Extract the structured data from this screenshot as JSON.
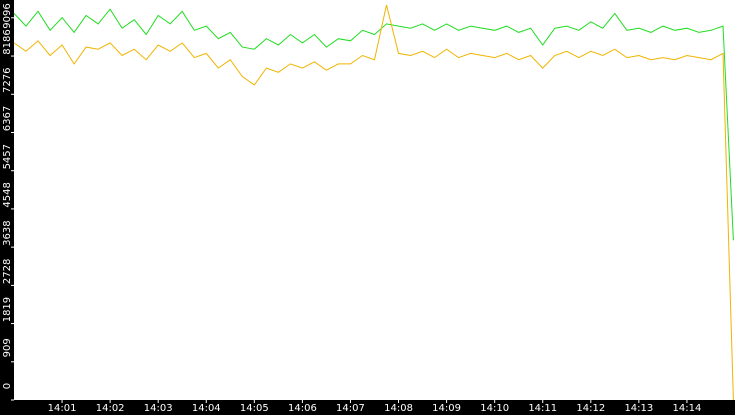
{
  "chart_data": {
    "type": "line",
    "x": [
      "14:00:00",
      "14:00:15",
      "14:00:30",
      "14:00:45",
      "14:01:00",
      "14:01:15",
      "14:01:30",
      "14:01:45",
      "14:02:00",
      "14:02:15",
      "14:02:30",
      "14:02:45",
      "14:03:00",
      "14:03:15",
      "14:03:30",
      "14:03:45",
      "14:04:00",
      "14:04:15",
      "14:04:30",
      "14:04:45",
      "14:05:00",
      "14:05:15",
      "14:05:30",
      "14:05:45",
      "14:06:00",
      "14:06:15",
      "14:06:30",
      "14:06:45",
      "14:07:00",
      "14:07:15",
      "14:07:30",
      "14:07:45",
      "14:08:00",
      "14:08:15",
      "14:08:30",
      "14:08:45",
      "14:09:00",
      "14:09:15",
      "14:09:30",
      "14:09:45",
      "14:10:00",
      "14:10:15",
      "14:10:30",
      "14:10:45",
      "14:11:00",
      "14:11:15",
      "14:11:30",
      "14:11:45",
      "14:12:00",
      "14:12:15",
      "14:12:30",
      "14:12:45",
      "14:13:00",
      "14:13:15",
      "14:13:30",
      "14:13:45",
      "14:14:00",
      "14:14:15",
      "14:14:30",
      "14:14:45",
      "14:14:58"
    ],
    "series": [
      {
        "color": "#22dd22",
        "values": [
          9200,
          8900,
          9250,
          8800,
          9100,
          8750,
          9150,
          8950,
          9300,
          8850,
          9050,
          8700,
          9150,
          8950,
          9250,
          8800,
          8900,
          8600,
          8750,
          8400,
          8350,
          8600,
          8450,
          8700,
          8500,
          8700,
          8400,
          8600,
          8550,
          8800,
          8700,
          8950,
          8900,
          8850,
          8950,
          8800,
          8950,
          8800,
          8900,
          8850,
          8800,
          8900,
          8750,
          8850,
          8450,
          8850,
          8900,
          8800,
          9000,
          8850,
          9200,
          8800,
          8850,
          8750,
          8900,
          8800,
          8850,
          8750,
          8800,
          8900,
          3800
        ]
      },
      {
        "color": "#f0b400",
        "values": [
          8500,
          8300,
          8550,
          8200,
          8450,
          8000,
          8400,
          8350,
          8500,
          8200,
          8350,
          8100,
          8450,
          8300,
          8500,
          8150,
          8250,
          7900,
          8100,
          7700,
          7500,
          7900,
          7800,
          8000,
          7900,
          8050,
          7850,
          8000,
          8000,
          8200,
          8100,
          9400,
          8250,
          8200,
          8300,
          8150,
          8350,
          8150,
          8250,
          8200,
          8150,
          8250,
          8100,
          8200,
          7900,
          8200,
          8300,
          8150,
          8300,
          8200,
          8350,
          8150,
          8200,
          8100,
          8150,
          8100,
          8200,
          8150,
          8100,
          8250,
          0
        ]
      }
    ],
    "xlim": [
      "14:00:00",
      "14:15:00"
    ],
    "xticks": [
      "14:01",
      "14:02",
      "14:03",
      "14:04",
      "14:05",
      "14:06",
      "14:07",
      "14:08",
      "14:09",
      "14:10",
      "14:11",
      "14:12",
      "14:13",
      "14:14"
    ],
    "ylim": [
      0,
      9520
    ],
    "yticks": [
      0,
      909,
      1819,
      2728,
      3638,
      4548,
      5457,
      6367,
      7276,
      8186,
      9096
    ]
  }
}
